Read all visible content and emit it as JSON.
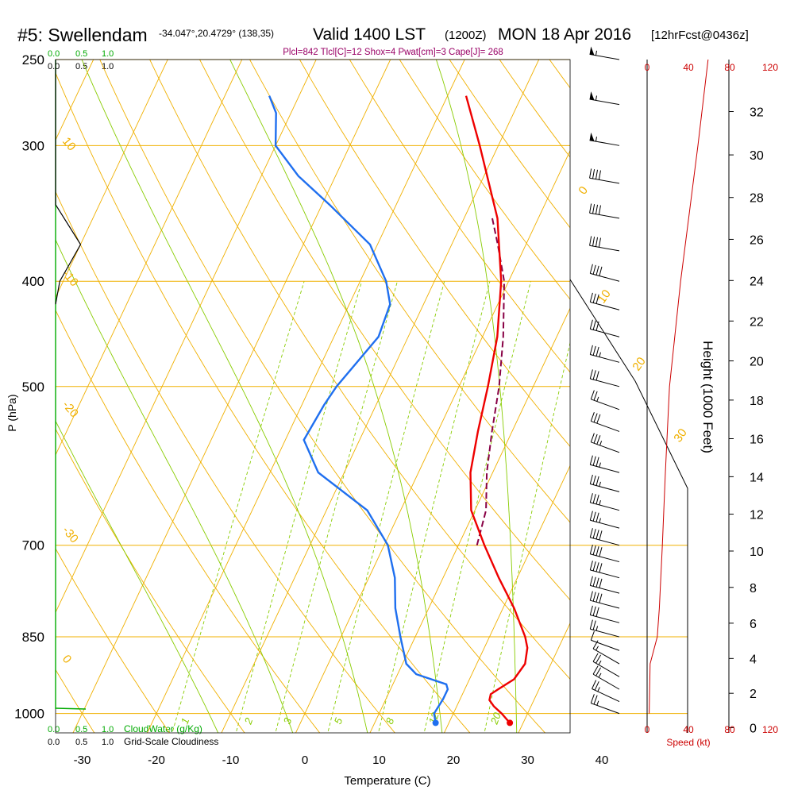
{
  "header": {
    "station": "#5: Swellendam",
    "coords": "-34.047°,20.4729° (138,35)",
    "valid": "Valid 1400 LST",
    "zulu": "(1200Z)",
    "date": "MON 18 Apr 2016",
    "fcst": "[12hrFcst@0436z]",
    "indices": "Plcl=842 Tlcl[C]=12 Shox=4 Pwat[cm]=3 Cape[J]= 268"
  },
  "axes": {
    "y_label": "P (hPa)",
    "x_label": "Temperature (C)",
    "height_label": "Height (1000 Feet)",
    "speed_label": "Speed (kt)",
    "cloudwater_label": "CloudWater (g/Kg)",
    "cloudiness_label": "Grid-Scale Cloudiness"
  },
  "colors": {
    "isotherm": "#f0b000",
    "mixing": "#88cc00",
    "temperature": "#ee0000",
    "dewpoint": "#1f6fef",
    "parcel": "#880044",
    "cloudwater": "#00aa00",
    "speed": "#cc0000",
    "header_purple": "#990066"
  },
  "chart_data": {
    "type": "line",
    "title": "#5: Swellendam",
    "xlabel": "Temperature (C)",
    "ylabel": "P (hPa)",
    "y_scale": "log",
    "xlim": [
      -35,
      36
    ],
    "ylim": [
      1020,
      250
    ],
    "x_ticks": [
      "-30",
      "-20",
      "-10",
      "0",
      "10",
      "20",
      "30",
      "40"
    ],
    "pressure_ticks": [
      "250",
      "300",
      "400",
      "500",
      "700",
      "850",
      "1000"
    ],
    "height_ticks": [
      "0",
      "2",
      "4",
      "6",
      "8",
      "10",
      "12",
      "14",
      "16",
      "18",
      "20",
      "22",
      "24",
      "26",
      "28",
      "30",
      "32"
    ],
    "speed_ticks": [
      "0",
      "40",
      "80",
      "120"
    ],
    "cloud_ticks": [
      "0.0",
      "0.5",
      "1.0"
    ],
    "mixing_ratio_labels": [
      "1",
      "2",
      "3",
      "5",
      "8",
      "12",
      "20"
    ],
    "isotherm_labels": [
      "0",
      "10",
      "20",
      "30",
      "10",
      "-10",
      "-20",
      "-30",
      "0"
    ],
    "series": [
      {
        "name": "temperature",
        "points": [
          [
            1020,
            28.2
          ],
          [
            1000,
            26.5
          ],
          [
            985,
            25
          ],
          [
            972,
            24
          ],
          [
            960,
            23.8
          ],
          [
            950,
            24.5
          ],
          [
            930,
            26
          ],
          [
            900,
            26.5
          ],
          [
            870,
            25.8
          ],
          [
            850,
            24.8
          ],
          [
            800,
            21.5
          ],
          [
            750,
            17.5
          ],
          [
            700,
            13.5
          ],
          [
            650,
            9.5
          ],
          [
            600,
            7
          ],
          [
            550,
            5.4
          ],
          [
            500,
            3.9
          ],
          [
            450,
            2.0
          ],
          [
            400,
            -1.0
          ],
          [
            350,
            -5.5
          ],
          [
            300,
            -12.5
          ],
          [
            270,
            -17.5
          ]
        ]
      },
      {
        "name": "dewpoint",
        "points": [
          [
            1020,
            18.2
          ],
          [
            1000,
            17.4
          ],
          [
            970,
            17.7
          ],
          [
            950,
            17.7
          ],
          [
            940,
            17.2
          ],
          [
            920,
            12.5
          ],
          [
            900,
            10.5
          ],
          [
            850,
            8
          ],
          [
            800,
            5.5
          ],
          [
            750,
            3.5
          ],
          [
            700,
            0.5
          ],
          [
            650,
            -4.5
          ],
          [
            600,
            -13.5
          ],
          [
            560,
            -17.5
          ],
          [
            520,
            -17
          ],
          [
            500,
            -16.5
          ],
          [
            450,
            -14
          ],
          [
            420,
            -14.5
          ],
          [
            400,
            -16.5
          ],
          [
            370,
            -21
          ],
          [
            340,
            -29
          ],
          [
            320,
            -35
          ],
          [
            300,
            -40
          ],
          [
            280,
            -42
          ],
          [
            270,
            -44
          ]
        ]
      },
      {
        "name": "parcel",
        "points": [
          [
            700,
            12.5
          ],
          [
            650,
            11.5
          ],
          [
            600,
            9.2
          ],
          [
            550,
            7.3
          ],
          [
            500,
            5.4
          ],
          [
            450,
            2.8
          ],
          [
            400,
            -0.6
          ],
          [
            370,
            -3.8
          ],
          [
            350,
            -6.2
          ]
        ]
      }
    ],
    "winds": [
      {
        "p": 1000,
        "dir": 290,
        "kt": 25
      },
      {
        "p": 975,
        "dir": 295,
        "kt": 25
      },
      {
        "p": 950,
        "dir": 300,
        "kt": 25
      },
      {
        "p": 925,
        "dir": 300,
        "kt": 25
      },
      {
        "p": 900,
        "dir": 300,
        "kt": 15
      },
      {
        "p": 875,
        "dir": 290,
        "kt": 10
      },
      {
        "p": 850,
        "dir": 285,
        "kt": 25
      },
      {
        "p": 825,
        "dir": 285,
        "kt": 30
      },
      {
        "p": 800,
        "dir": 285,
        "kt": 40
      },
      {
        "p": 775,
        "dir": 285,
        "kt": 40
      },
      {
        "p": 750,
        "dir": 285,
        "kt": 40
      },
      {
        "p": 725,
        "dir": 285,
        "kt": 40
      },
      {
        "p": 700,
        "dir": 285,
        "kt": 40
      },
      {
        "p": 675,
        "dir": 285,
        "kt": 35
      },
      {
        "p": 650,
        "dir": 285,
        "kt": 35
      },
      {
        "p": 625,
        "dir": 285,
        "kt": 35
      },
      {
        "p": 600,
        "dir": 285,
        "kt": 35
      },
      {
        "p": 575,
        "dir": 290,
        "kt": 35
      },
      {
        "p": 550,
        "dir": 290,
        "kt": 30
      },
      {
        "p": 525,
        "dir": 290,
        "kt": 25
      },
      {
        "p": 500,
        "dir": 285,
        "kt": 30
      },
      {
        "p": 475,
        "dir": 285,
        "kt": 35
      },
      {
        "p": 450,
        "dir": 285,
        "kt": 30
      },
      {
        "p": 425,
        "dir": 285,
        "kt": 30
      },
      {
        "p": 400,
        "dir": 285,
        "kt": 40
      },
      {
        "p": 375,
        "dir": 280,
        "kt": 40
      },
      {
        "p": 350,
        "dir": 280,
        "kt": 40
      },
      {
        "p": 325,
        "dir": 280,
        "kt": 40
      },
      {
        "p": 300,
        "dir": 280,
        "kt": 55
      },
      {
        "p": 275,
        "dir": 280,
        "kt": 55
      },
      {
        "p": 250,
        "dir": 280,
        "kt": 55
      }
    ],
    "wind_speed_profile": [
      [
        1000,
        2
      ],
      [
        900,
        3
      ],
      [
        850,
        10
      ],
      [
        800,
        12
      ],
      [
        700,
        15
      ],
      [
        600,
        18
      ],
      [
        500,
        22
      ],
      [
        400,
        33
      ],
      [
        300,
        50
      ],
      [
        250,
        60
      ]
    ],
    "cloudiness_profile": [
      [
        250,
        0
      ],
      [
        340,
        0
      ],
      [
        370,
        0.3
      ],
      [
        400,
        0.05
      ],
      [
        420,
        0
      ]
    ]
  }
}
